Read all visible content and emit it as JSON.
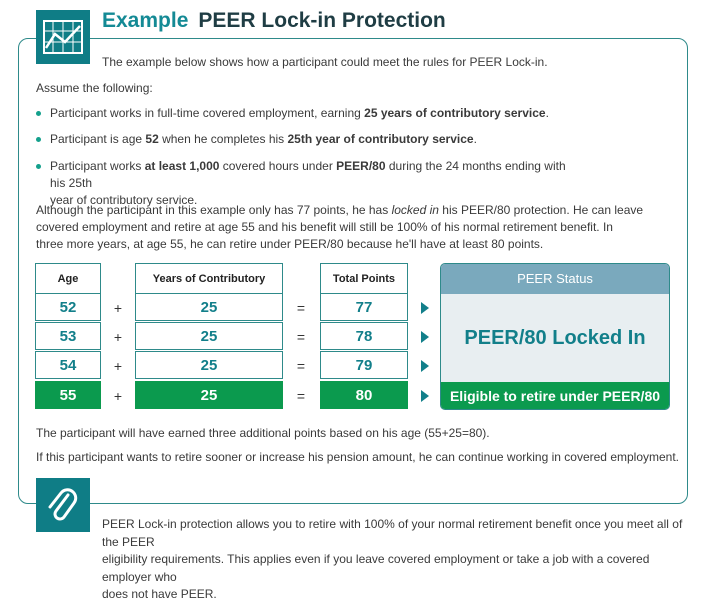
{
  "header": {
    "label": "Example",
    "title": "PEER Lock-in Protection",
    "icon": "line-chart-icon"
  },
  "intro": "The example below shows how a participant could meet the rules for PEER Lock-in.",
  "assume": "Assume the following:",
  "bullets": [
    {
      "pre": "Participant works in full-time covered employment, earning ",
      "strong": "25 years of contributory service",
      "post": "."
    },
    {
      "pre": "Participant is age ",
      "strong": "52",
      "mid": " when he completes his ",
      "strong2": "25th year of contributory service",
      "post": "."
    },
    {
      "pre": "Participant works ",
      "strong": "at least 1,000",
      "mid": " covered hours under ",
      "strong2": "PEER/80",
      "post": " during the 24 months ending with his 25th",
      "line2": "year of contributory service."
    }
  ],
  "para": {
    "l1a": "Although the participant in this example only has 77 points, he has ",
    "l1i": "locked in",
    "l1b": " his PEER/80 protection. He can leave",
    "l2": "covered employment and retire at age 55 and his benefit will still be 100% of his normal retirement benefit. In",
    "l3": "three more years, at age 55, he can retire under PEER/80 because he'll have at least 80 points."
  },
  "table": {
    "headers": [
      "Age",
      "Years of Contributory Service",
      "Total Points",
      "PEER Status"
    ],
    "rows": [
      {
        "age": "52",
        "years": "25",
        "points": "77"
      },
      {
        "age": "53",
        "years": "25",
        "points": "78"
      },
      {
        "age": "54",
        "years": "25",
        "points": "79"
      },
      {
        "age": "55",
        "years": "25",
        "points": "80"
      }
    ],
    "plus": "+",
    "equals": "=",
    "status_locked": "PEER/80 Locked In",
    "status_eligible": "Eligible to retire under PEER/80",
    "highlight_color": "#0b9a4e"
  },
  "note1": "The participant will have earned three additional points based on his age (55+25=80).",
  "note2": "If this participant wants to retire sooner or increase his pension amount, he can continue working in covered employment.",
  "footer": {
    "icon": "paperclip-icon",
    "l1": "PEER Lock-in protection allows you to retire with 100% of your normal retirement benefit once you meet all of the PEER",
    "l2": "eligibility requirements. This applies even if you leave covered employment or take a job with a covered employer who",
    "l3": "does not have PEER."
  }
}
